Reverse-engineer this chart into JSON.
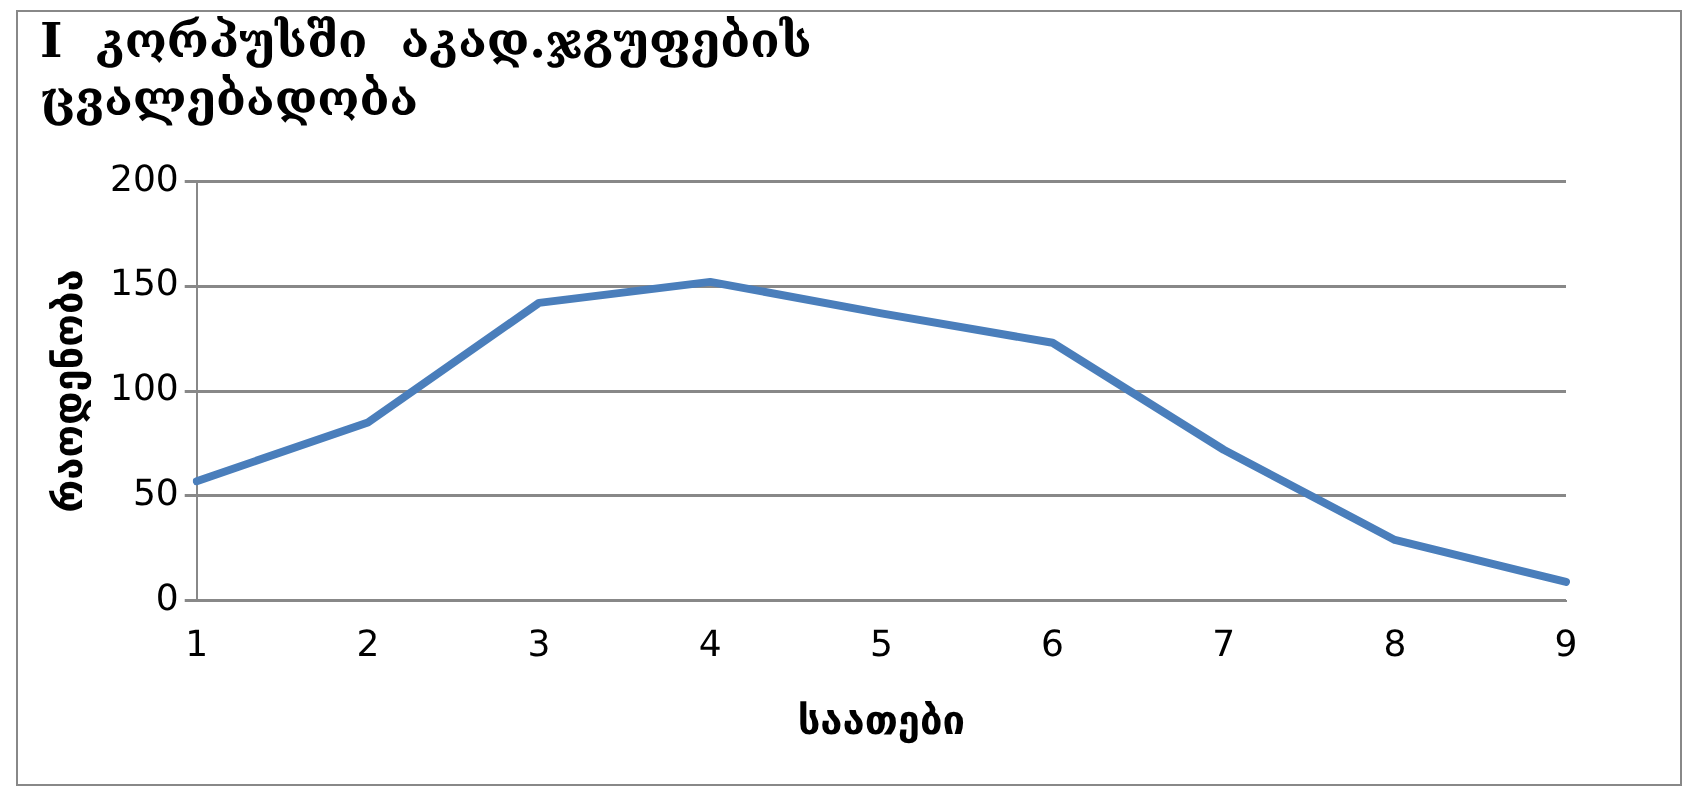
{
  "chart_data": {
    "type": "line",
    "title": [
      "I  კორპუსში  აკად.ჯგუფების",
      "ცვალებადობა"
    ],
    "xlabel": "საათები",
    "ylabel": "რაოდენობა",
    "categories": [
      "1",
      "2",
      "3",
      "4",
      "5",
      "6",
      "7",
      "8",
      "9"
    ],
    "series": [
      {
        "color": "#4a7ebb",
        "values": [
          57,
          85,
          142,
          152,
          137,
          123,
          72,
          29,
          9
        ]
      }
    ],
    "ylim": [
      0,
      200
    ],
    "yticks": [
      0,
      50,
      100,
      150,
      200
    ],
    "grid": "y",
    "legend": false,
    "marker": "none",
    "line_style": "solid"
  }
}
